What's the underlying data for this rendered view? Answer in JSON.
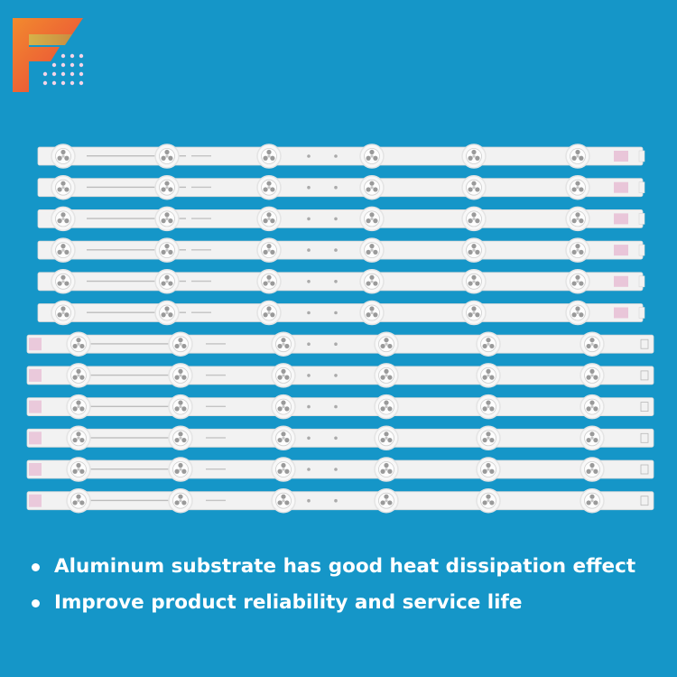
{
  "background_color": "#1596c8",
  "logo": {
    "icon": "brand-f-logo-icon"
  },
  "product": {
    "strip_count": 12,
    "leds_per_strip": 6,
    "colors": {
      "strip": "#f2f2f2",
      "strip_edge": "#d8d8d8",
      "led_ring": "#e4e4e4",
      "led_shadow": "#9a9a9a",
      "connector": "#e3a8c8"
    }
  },
  "features": [
    "Aluminum substrate has good heat dissipation effect",
    "Improve product reliability and service life"
  ]
}
